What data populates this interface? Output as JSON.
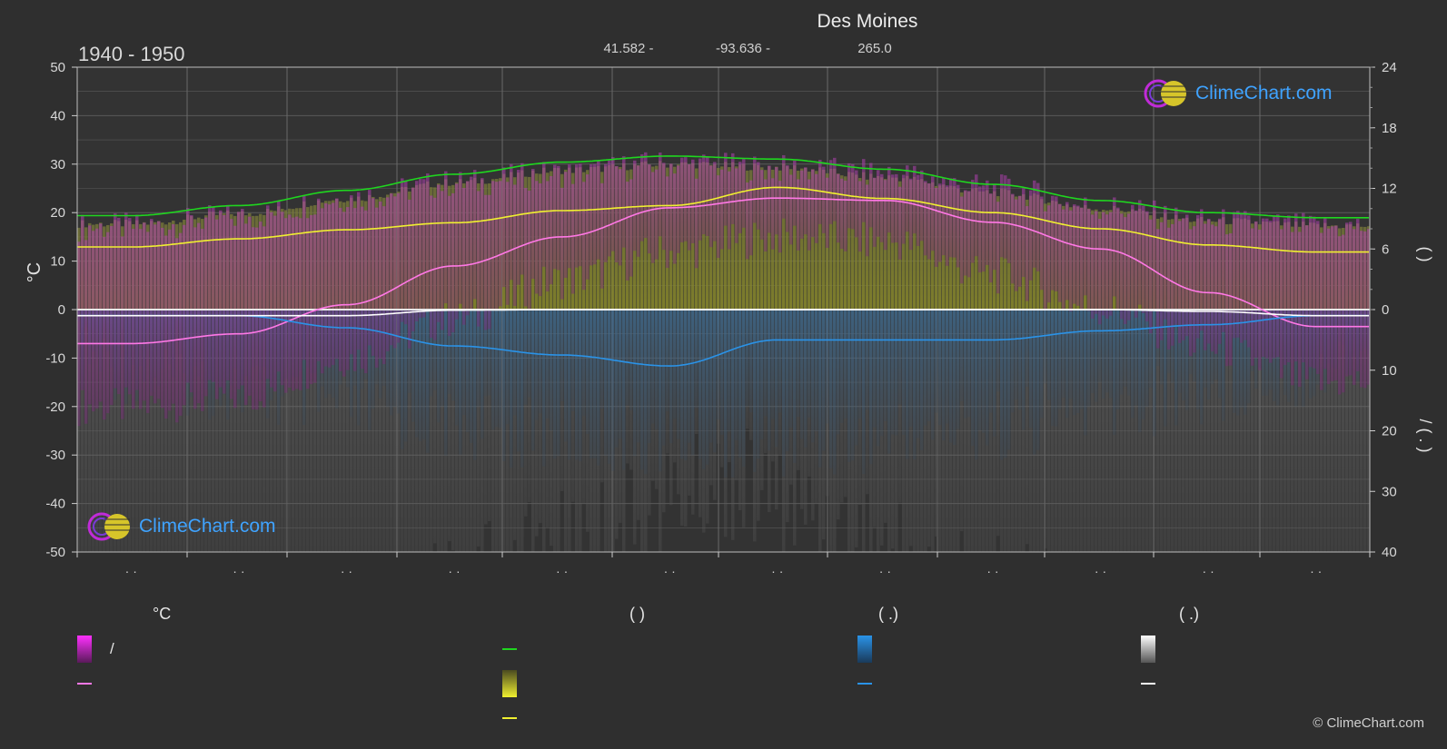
{
  "chart": {
    "title": "Des Moines",
    "period": "1940 - 1950",
    "coords": {
      "lat": "41.582 -",
      "lon": "-93.636 -",
      "elev": "265.0"
    },
    "left_axis_label": "°C",
    "right_axis_labels": {
      "top": "(    )",
      "bottom": "/    (   .   )"
    }
  },
  "chart_data": {
    "type": "line",
    "x_categories": [
      "· ·",
      "· ·",
      "· ·",
      "· ·",
      "· ·",
      "· ·",
      "· ·",
      "· ·",
      "· ·",
      "· ·",
      "· ·",
      "· ·"
    ],
    "ylim_left": [
      -50,
      50
    ],
    "yticks_left": [
      50,
      40,
      30,
      20,
      10,
      0,
      -10,
      -20,
      -30,
      -40,
      -50
    ],
    "yticks_right_top": [
      24,
      18,
      12,
      6,
      0
    ],
    "yticks_right_bottom": [
      10,
      20,
      30,
      40
    ],
    "ylim_right_top": [
      0,
      24
    ],
    "ylim_right_bottom": [
      0,
      40
    ],
    "grid": true,
    "series": [
      {
        "key": "daylight",
        "color": "#1fd61f",
        "axis": "right_top",
        "values": [
          9.3,
          10.3,
          11.8,
          13.4,
          14.6,
          15.2,
          14.9,
          13.9,
          12.4,
          10.8,
          9.6,
          9.1
        ]
      },
      {
        "key": "sunshine",
        "color": "#f0f030",
        "axis": "right_top",
        "values": [
          6.2,
          7.0,
          7.9,
          8.6,
          9.8,
          10.3,
          12.1,
          11.0,
          9.6,
          8.0,
          6.4,
          5.7
        ]
      },
      {
        "key": "temp_mean",
        "color": "#ff78e6",
        "axis": "left",
        "values": [
          -7.0,
          -5.0,
          1.0,
          9.0,
          15.0,
          21.0,
          23.0,
          22.5,
          18.0,
          12.5,
          3.5,
          -3.5
        ]
      },
      {
        "key": "precip_mean",
        "color": "#2a93e8",
        "axis": "right_bottom",
        "values": [
          1.0,
          1.0,
          3.0,
          6.0,
          7.5,
          9.3,
          5.0,
          5.0,
          5.0,
          3.5,
          2.5,
          1.0
        ]
      },
      {
        "key": "snow_mean",
        "color": "#ffffff",
        "axis": "right_bottom",
        "values": [
          1.0,
          1.0,
          1.0,
          0.1,
          0,
          0,
          0,
          0,
          0,
          0,
          0.3,
          1.0
        ]
      }
    ],
    "bands": {
      "temp_max_daily": [
        17,
        19,
        23,
        26,
        28,
        30,
        29,
        28,
        25,
        21,
        18,
        17
      ],
      "temp_min_daily": [
        -20,
        -18,
        -10,
        -2,
        6,
        12,
        15,
        14,
        7,
        0,
        -8,
        -15
      ]
    }
  },
  "legend": {
    "groups": [
      {
        "title": "°C",
        "items": [
          {
            "label": "            /",
            "swatch": "grad",
            "colors": [
              "#ff30ff",
              "#5a1a5a"
            ]
          },
          {
            "label": "",
            "swatch": "line",
            "colors": [
              "#ff78e6"
            ]
          }
        ]
      },
      {
        "title": "(          )",
        "items": [
          {
            "label": "",
            "swatch": "line",
            "colors": [
              "#1fd61f"
            ]
          },
          {
            "label": "",
            "swatch": "grad",
            "colors": [
              "#f0f030",
              "#4a4a20"
            ]
          },
          {
            "label": "",
            "swatch": "line",
            "colors": [
              "#f0f030"
            ]
          }
        ]
      },
      {
        "title": "(    .)",
        "items": [
          {
            "label": "",
            "swatch": "grad",
            "colors": [
              "#2a93e8",
              "#1a3a5a"
            ]
          },
          {
            "label": "",
            "swatch": "line",
            "colors": [
              "#2a93e8"
            ]
          }
        ]
      },
      {
        "title": "(    .)",
        "items": [
          {
            "label": "",
            "swatch": "grad",
            "colors": [
              "#ffffff",
              "#555555"
            ]
          },
          {
            "label": "",
            "swatch": "line",
            "colors": [
              "#ffffff"
            ]
          }
        ]
      }
    ]
  },
  "branding": {
    "logo_text": "ClimeChart.com",
    "copyright": "© ClimeChart.com"
  }
}
